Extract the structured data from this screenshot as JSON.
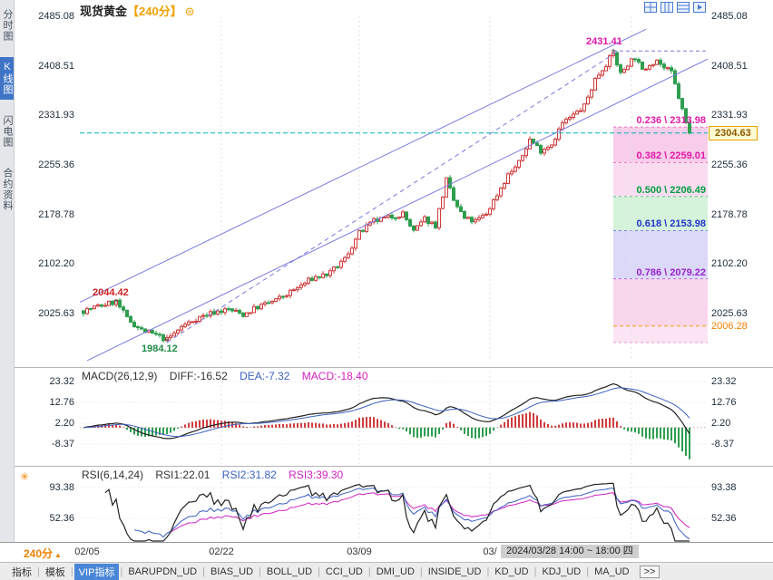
{
  "header": {
    "symbol": "现货黄金",
    "period": "【240分】"
  },
  "icons": {
    "gear": "⊜",
    "indicator": "✳",
    "period_arrow": "▲",
    "more": ">>"
  },
  "sidebar": {
    "items": [
      {
        "label": "分时图",
        "name": "time-share-chart",
        "active": false
      },
      {
        "label": "K线图",
        "name": "kline-chart",
        "active": true
      },
      {
        "label": "闪电图",
        "name": "flash-chart",
        "active": false
      },
      {
        "label": "合约资料",
        "name": "contract-info",
        "active": false
      }
    ]
  },
  "right_axis": {
    "last_price_label": "2304.63",
    "lower_label": "2006.28"
  },
  "macd_panel": {
    "title": "MACD(26,12,9)",
    "diff": "DIFF:-16.52",
    "dea": "DEA:-7.32",
    "macd": "MACD:-18.40"
  },
  "rsi_panel": {
    "title": "RSI(6,14,24)",
    "rsi1": "RSI1:22.01",
    "rsi2": "RSI2:31.82",
    "rsi3": "RSI3:39.30"
  },
  "bottom": {
    "period": "240分"
  },
  "crosshair": {
    "time_label": "2024/03/28 14:00 ~ 18:00 四"
  },
  "toolbar": {
    "tabs": [
      {
        "label": "指标",
        "name": "indicators"
      },
      {
        "label": "模板",
        "name": "templates"
      },
      {
        "label": "VIP指标",
        "name": "vip-indicators",
        "active": true
      },
      {
        "label": "BARUPDN_UD",
        "name": "barupdn-ud"
      },
      {
        "label": "BIAS_UD",
        "name": "bias-ud"
      },
      {
        "label": "BOLL_UD",
        "name": "boll-ud"
      },
      {
        "label": "CCI_UD",
        "name": "cci-ud"
      },
      {
        "label": "DMI_UD",
        "name": "dmi-ud"
      },
      {
        "label": "INSIDE_UD",
        "name": "inside-ud"
      },
      {
        "label": "KD_UD",
        "name": "kd-ud"
      },
      {
        "label": "KDJ_UD",
        "name": "kdj-ud"
      },
      {
        "label": "MA_UD",
        "name": "ma-ud"
      }
    ],
    "more": ">>"
  },
  "colors": {
    "up": "#cf3c3c",
    "down": "#2e9e4f",
    "channel": "#7a7ae0",
    "crosshair": "#00b2b2",
    "diff_line": "#222222",
    "dea_line": "#3a5fbf",
    "hist_pos": "#cf3c3c",
    "hist_neg": "#2e9e4f",
    "rsi1": "#222222",
    "rsi2": "#3a5fbf",
    "rsi3": "#d020c0",
    "accent_orange": "#f0a000",
    "active_blue": "#4a86d8",
    "magenta": "#e018a8",
    "tag_bg": "#fffad2",
    "tag_border": "#e8a000",
    "tag_text": "#8a5a00",
    "grid": "#e2e2e6",
    "tick_text": "#1c2b3a"
  },
  "chart_data": {
    "type": "candlestick",
    "symbol": "现货黄金",
    "period": "240分",
    "candle_count": 168,
    "y_ticks": [
      2485.08,
      2408.51,
      2331.93,
      2255.36,
      2178.78,
      2102.2,
      2025.63
    ],
    "x_ticks": [
      {
        "label": "02/05",
        "index": 1
      },
      {
        "label": "02/22",
        "index": 38
      },
      {
        "label": "03/09",
        "index": 76
      },
      {
        "label": "03/",
        "index": 112
      }
    ],
    "grid_indices": [
      38,
      76,
      112,
      151
    ],
    "price_path": [
      [
        0,
        2030
      ],
      [
        6,
        2040
      ],
      [
        9,
        2044
      ],
      [
        12,
        2018
      ],
      [
        16,
        2000
      ],
      [
        20,
        1992
      ],
      [
        23,
        1985
      ],
      [
        27,
        2005
      ],
      [
        31,
        2018
      ],
      [
        36,
        2028
      ],
      [
        40,
        2032
      ],
      [
        44,
        2024
      ],
      [
        48,
        2036
      ],
      [
        53,
        2046
      ],
      [
        58,
        2062
      ],
      [
        63,
        2080
      ],
      [
        68,
        2088
      ],
      [
        72,
        2110
      ],
      [
        76,
        2150
      ],
      [
        80,
        2168
      ],
      [
        84,
        2174
      ],
      [
        88,
        2180
      ],
      [
        91,
        2152
      ],
      [
        94,
        2172
      ],
      [
        97,
        2162
      ],
      [
        100,
        2232
      ],
      [
        102,
        2200
      ],
      [
        105,
        2172
      ],
      [
        108,
        2168
      ],
      [
        111,
        2180
      ],
      [
        114,
        2210
      ],
      [
        117,
        2240
      ],
      [
        120,
        2258
      ],
      [
        123,
        2295
      ],
      [
        126,
        2278
      ],
      [
        129,
        2288
      ],
      [
        132,
        2320
      ],
      [
        135,
        2332
      ],
      [
        138,
        2346
      ],
      [
        141,
        2388
      ],
      [
        144,
        2412
      ],
      [
        146,
        2428
      ],
      [
        148,
        2396
      ],
      [
        150,
        2412
      ],
      [
        152,
        2422
      ],
      [
        154,
        2400
      ],
      [
        156,
        2412
      ],
      [
        158,
        2418
      ],
      [
        160,
        2405
      ],
      [
        162,
        2398
      ],
      [
        164,
        2360
      ],
      [
        166,
        2320
      ],
      [
        167,
        2306
      ]
    ],
    "key_points": {
      "early_high": {
        "index": 9,
        "price": 2044.42,
        "color": "#cc2222"
      },
      "swing_low": {
        "index": 23,
        "price": 1984.12,
        "color": "#1f8c46"
      },
      "swing_high": {
        "index": 146,
        "price": 2431.41,
        "color": "#e018a8"
      },
      "last": {
        "index": 167,
        "price": 2304.63,
        "color": "#8a5a00"
      }
    },
    "last_price": 2304.63,
    "lower_bound_price": 2006.28,
    "fib_levels": [
      {
        "ratio": "0.236",
        "price": 2313.98,
        "color": "#e018a8",
        "band": "#f7cde9"
      },
      {
        "ratio": "0.382",
        "price": 2259.01,
        "color": "#e018a8",
        "band": "#fadcf1"
      },
      {
        "ratio": "0.500",
        "price": 2206.49,
        "color": "#00a040",
        "band": "#d4f3da"
      },
      {
        "ratio": "0.618",
        "price": 2153.98,
        "color": "#2233cc",
        "band": "#dcd9f8"
      },
      {
        "ratio": "0.786",
        "price": 2079.22,
        "color": "#9922cc",
        "band": "#f8d6ec"
      }
    ],
    "extension_band": "#fbe4f3",
    "channel_lines": [
      {
        "from": [
          -1,
          2043
        ],
        "to": [
          155,
          2465
        ],
        "dashed": false
      },
      {
        "from": [
          1,
          1953
        ],
        "to": [
          172,
          2419
        ],
        "dashed": false
      },
      {
        "from": [
          23,
          1981
        ],
        "to": [
          147,
          2430
        ],
        "dashed": true
      }
    ],
    "macd": {
      "title": "MACD(26,12,9)",
      "y_ticks": [
        23.32,
        12.76,
        2.2,
        -8.37
      ],
      "diff": -16.52,
      "dea": -7.32,
      "macd": -18.4
    },
    "rsi": {
      "title": "RSI(6,14,24)",
      "y_ticks": [
        93.38,
        52.36
      ],
      "rsi1": 22.01,
      "rsi2": 31.82,
      "rsi3": 39.3
    }
  }
}
